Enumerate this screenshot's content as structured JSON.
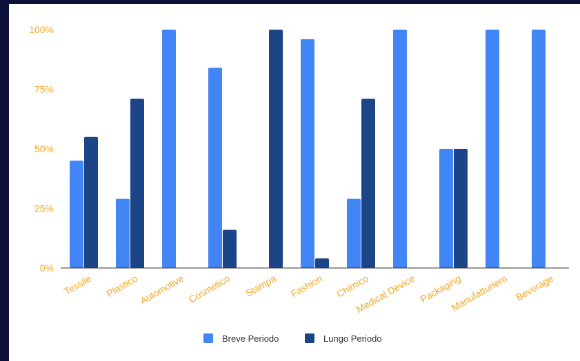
{
  "chart_data": {
    "type": "bar",
    "categories": [
      "Tessile",
      "Plastico",
      "Automotive",
      "Cosmetico",
      "Stampa",
      "Fashion",
      "Chimico",
      "Medical Device",
      "Packaging",
      "Manufatturiero",
      "Beverage"
    ],
    "series": [
      {
        "name": "Breve Periodo",
        "color": "#4285f4",
        "values": [
          45,
          29,
          100,
          84,
          0,
          96,
          29,
          100,
          50,
          100,
          100
        ]
      },
      {
        "name": "Lungo Periodo",
        "color": "#1c4587",
        "values": [
          55,
          71,
          0,
          16,
          100,
          4,
          71,
          0,
          50,
          0,
          0
        ]
      }
    ],
    "yticks": [
      "0%",
      "25%",
      "50%",
      "75%",
      "100%"
    ],
    "ylim": [
      0,
      100
    ],
    "grid": false,
    "legend": "bottom",
    "tick_color": "#f5a623"
  }
}
